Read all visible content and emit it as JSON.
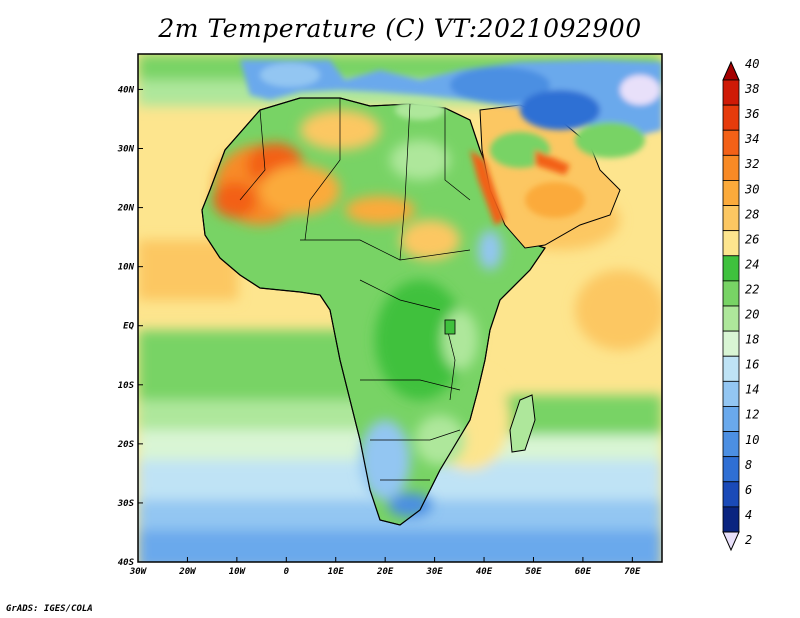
{
  "title": "2m Temperature (C) VT:2021092900",
  "credit": "GrADS: IGES/COLA",
  "map": {
    "lon_range": [
      -30,
      76
    ],
    "lat_range": [
      -40,
      46
    ],
    "lon_ticks": [
      {
        "value": -30,
        "label": "30W"
      },
      {
        "value": -20,
        "label": "20W"
      },
      {
        "value": -10,
        "label": "10W"
      },
      {
        "value": 0,
        "label": "0"
      },
      {
        "value": 10,
        "label": "10E"
      },
      {
        "value": 20,
        "label": "20E"
      },
      {
        "value": 30,
        "label": "30E"
      },
      {
        "value": 40,
        "label": "40E"
      },
      {
        "value": 50,
        "label": "50E"
      },
      {
        "value": 60,
        "label": "60E"
      },
      {
        "value": 70,
        "label": "70E"
      }
    ],
    "lat_ticks": [
      {
        "value": 40,
        "label": "40N"
      },
      {
        "value": 30,
        "label": "30N"
      },
      {
        "value": 20,
        "label": "20N"
      },
      {
        "value": 10,
        "label": "10N"
      },
      {
        "value": 0,
        "label": "EQ"
      },
      {
        "value": -10,
        "label": "10S"
      },
      {
        "value": -20,
        "label": "20S"
      },
      {
        "value": -30,
        "label": "30S"
      },
      {
        "value": -40,
        "label": "40S"
      }
    ]
  },
  "colorbar": {
    "labels": [
      "40",
      "38",
      "36",
      "34",
      "32",
      "30",
      "28",
      "26",
      "24",
      "22",
      "20",
      "18",
      "16",
      "14",
      "12",
      "10",
      "8",
      "6",
      "4",
      "2"
    ],
    "colors": [
      "#a50000",
      "#cf1a06",
      "#e63b0c",
      "#f36117",
      "#f88a25",
      "#fbaa3b",
      "#fcc762",
      "#fde58e",
      "#3fc13d",
      "#78d365",
      "#aee79b",
      "#d9f5d4",
      "#bfe3f5",
      "#93c6f2",
      "#6aa9ec",
      "#4c8fe2",
      "#2f6fd4",
      "#1a4ab8",
      "#0a2480",
      "#e8e0fa"
    ]
  }
}
